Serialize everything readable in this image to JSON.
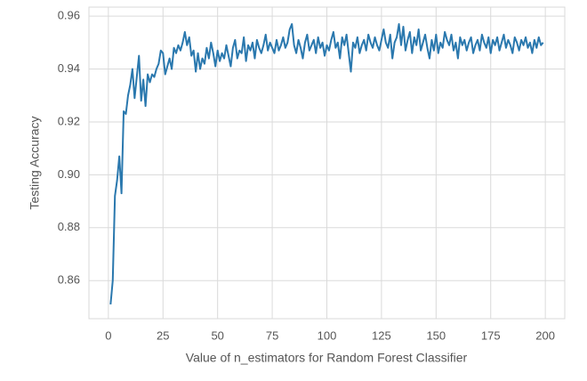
{
  "chart_data": {
    "type": "line",
    "xlabel": "Value of n_estimators for Random Forest Classifier",
    "ylabel": "Testing Accuracy",
    "color": "#2a78ae",
    "grid": true,
    "xlim": [
      -8.9,
      208.9
    ],
    "ylim": [
      0.8456,
      0.9634
    ],
    "xticks": [
      0,
      25,
      50,
      75,
      100,
      125,
      150,
      175,
      200
    ],
    "yticks": [
      0.86,
      0.88,
      {
        "value": 0.9,
        "label": "0.90"
      },
      0.92,
      0.94,
      0.96
    ],
    "x": [
      1,
      2,
      3,
      4,
      5,
      6,
      7,
      8,
      9,
      10,
      11,
      12,
      13,
      14,
      15,
      16,
      17,
      18,
      19,
      20,
      21,
      22,
      23,
      24,
      25,
      26,
      27,
      28,
      29,
      30,
      31,
      32,
      33,
      34,
      35,
      36,
      37,
      38,
      39,
      40,
      41,
      42,
      43,
      44,
      45,
      46,
      47,
      48,
      49,
      50,
      51,
      52,
      53,
      54,
      55,
      56,
      57,
      58,
      59,
      60,
      61,
      62,
      63,
      64,
      65,
      66,
      67,
      68,
      69,
      70,
      71,
      72,
      73,
      74,
      75,
      76,
      77,
      78,
      79,
      80,
      81,
      82,
      83,
      84,
      85,
      86,
      87,
      88,
      89,
      90,
      91,
      92,
      93,
      94,
      95,
      96,
      97,
      98,
      99,
      100,
      101,
      102,
      103,
      104,
      105,
      106,
      107,
      108,
      109,
      110,
      111,
      112,
      113,
      114,
      115,
      116,
      117,
      118,
      119,
      120,
      121,
      122,
      123,
      124,
      125,
      126,
      127,
      128,
      129,
      130,
      131,
      132,
      133,
      134,
      135,
      136,
      137,
      138,
      139,
      140,
      141,
      142,
      143,
      144,
      145,
      146,
      147,
      148,
      149,
      150,
      151,
      152,
      153,
      154,
      155,
      156,
      157,
      158,
      159,
      160,
      161,
      162,
      163,
      164,
      165,
      166,
      167,
      168,
      169,
      170,
      171,
      172,
      173,
      174,
      175,
      176,
      177,
      178,
      179,
      180,
      181,
      182,
      183,
      184,
      185,
      186,
      187,
      188,
      189,
      190,
      191,
      192,
      193,
      194,
      195,
      196,
      197,
      198,
      199
    ],
    "values": [
      0.851,
      0.86,
      0.892,
      0.898,
      0.907,
      0.893,
      0.924,
      0.923,
      0.93,
      0.934,
      0.94,
      0.929,
      0.937,
      0.945,
      0.928,
      0.936,
      0.926,
      0.938,
      0.935,
      0.938,
      0.937,
      0.94,
      0.942,
      0.947,
      0.946,
      0.938,
      0.941,
      0.944,
      0.94,
      0.948,
      0.946,
      0.949,
      0.947,
      0.95,
      0.954,
      0.949,
      0.952,
      0.945,
      0.947,
      0.939,
      0.946,
      0.94,
      0.944,
      0.942,
      0.948,
      0.944,
      0.95,
      0.946,
      0.941,
      0.947,
      0.943,
      0.946,
      0.944,
      0.949,
      0.945,
      0.941,
      0.948,
      0.951,
      0.944,
      0.947,
      0.946,
      0.952,
      0.943,
      0.949,
      0.947,
      0.95,
      0.944,
      0.951,
      0.948,
      0.946,
      0.949,
      0.953,
      0.947,
      0.95,
      0.948,
      0.946,
      0.951,
      0.947,
      0.949,
      0.952,
      0.948,
      0.95,
      0.955,
      0.957,
      0.949,
      0.946,
      0.951,
      0.948,
      0.944,
      0.95,
      0.953,
      0.947,
      0.949,
      0.951,
      0.946,
      0.952,
      0.948,
      0.95,
      0.945,
      0.949,
      0.947,
      0.951,
      0.954,
      0.948,
      0.95,
      0.944,
      0.952,
      0.949,
      0.953,
      0.946,
      0.939,
      0.95,
      0.948,
      0.952,
      0.946,
      0.949,
      0.951,
      0.947,
      0.953,
      0.95,
      0.948,
      0.952,
      0.949,
      0.947,
      0.951,
      0.955,
      0.95,
      0.948,
      0.953,
      0.944,
      0.95,
      0.952,
      0.957,
      0.949,
      0.956,
      0.947,
      0.951,
      0.954,
      0.946,
      0.952,
      0.949,
      0.955,
      0.947,
      0.95,
      0.953,
      0.948,
      0.944,
      0.951,
      0.947,
      0.953,
      0.946,
      0.95,
      0.948,
      0.954,
      0.951,
      0.949,
      0.953,
      0.947,
      0.95,
      0.944,
      0.952,
      0.949,
      0.951,
      0.947,
      0.95,
      0.952,
      0.946,
      0.949,
      0.951,
      0.947,
      0.953,
      0.95,
      0.948,
      0.952,
      0.946,
      0.951,
      0.949,
      0.952,
      0.947,
      0.95,
      0.953,
      0.948,
      0.951,
      0.949,
      0.946,
      0.952,
      0.95,
      0.947,
      0.951,
      0.949,
      0.952,
      0.948,
      0.95,
      0.946,
      0.951,
      0.948,
      0.952,
      0.949,
      0.95
    ]
  }
}
